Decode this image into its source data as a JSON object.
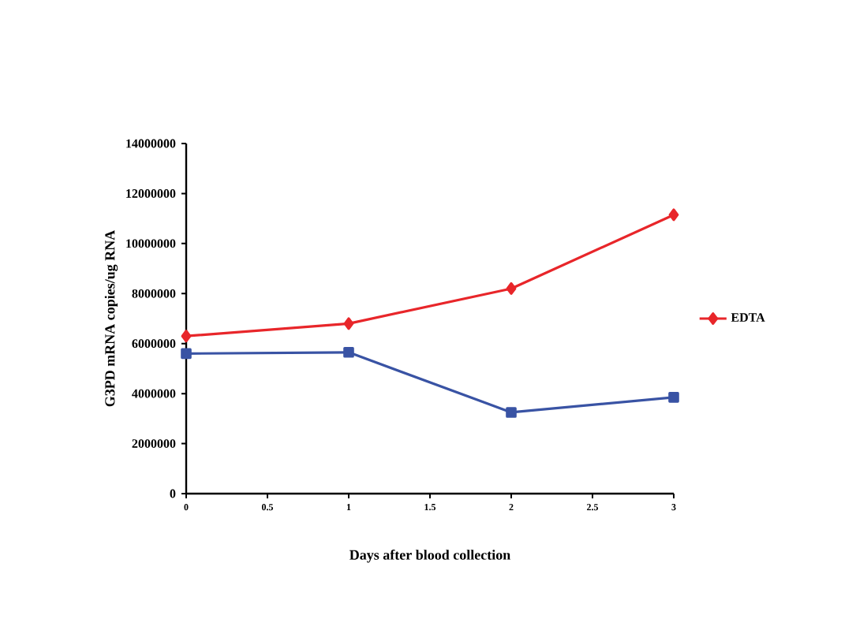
{
  "chart_data": {
    "type": "line",
    "xlabel": "Days after blood collection",
    "ylabel": "G3PD mRNA copies/ug RNA",
    "x": [
      0,
      1,
      2,
      3
    ],
    "series": [
      {
        "name": "EDTA",
        "color": "#e8262a",
        "marker": "diamond",
        "values": [
          6300000,
          6800000,
          8200000,
          11150000
        ]
      },
      {
        "color": "#3953a4",
        "marker": "square",
        "values": [
          5600000,
          5650000,
          3250000,
          3850000
        ]
      }
    ],
    "xlim": [
      0,
      3
    ],
    "xticks": [
      0,
      0.5,
      1,
      1.5,
      2,
      2.5,
      3
    ],
    "ylim": [
      0,
      14000000
    ],
    "yticks": [
      0,
      2000000,
      4000000,
      6000000,
      8000000,
      10000000,
      12000000,
      14000000
    ],
    "grid": false,
    "legend": "right",
    "line_style": "solid"
  }
}
